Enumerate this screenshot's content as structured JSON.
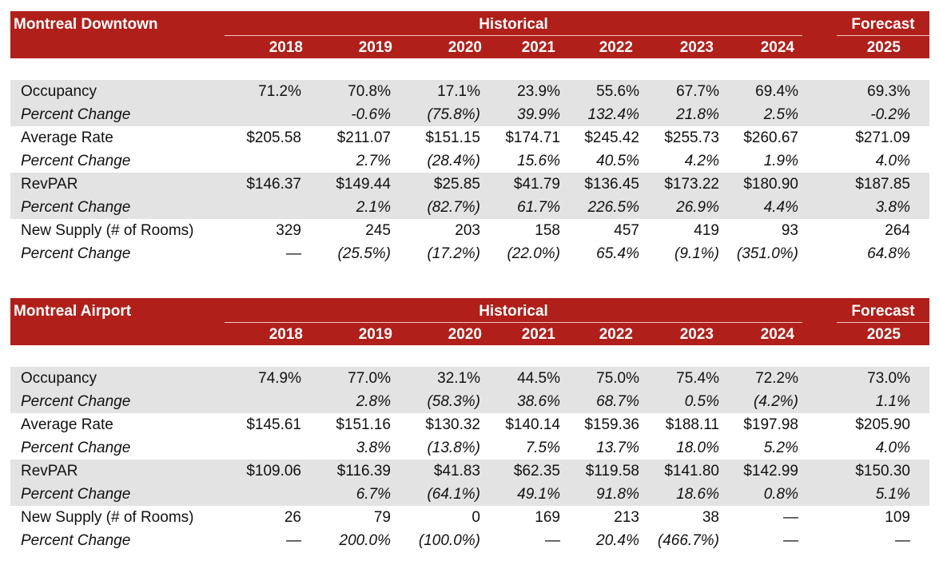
{
  "tables": [
    {
      "title": "Montreal Downtown",
      "historical_label": "Historical",
      "forecast_label": "Forecast",
      "years": [
        "2018",
        "2019",
        "2020",
        "2021",
        "2022",
        "2023",
        "2024",
        "2025"
      ],
      "rows": [
        {
          "label": "Occupancy",
          "values": [
            "71.2%",
            "70.8%",
            "17.1%",
            "23.9%",
            "55.6%",
            "67.7%",
            "69.4%",
            "69.3%"
          ]
        },
        {
          "label": "Percent Change",
          "values": [
            "",
            "-0.6%",
            "(75.8%)",
            "39.9%",
            "132.4%",
            "21.8%",
            "2.5%",
            "-0.2%"
          ]
        },
        {
          "label": "Average Rate",
          "values": [
            "$205.58",
            "$211.07",
            "$151.15",
            "$174.71",
            "$245.42",
            "$255.73",
            "$260.67",
            "$271.09"
          ]
        },
        {
          "label": "Percent Change",
          "values": [
            "",
            "2.7%",
            "(28.4%)",
            "15.6%",
            "40.5%",
            "4.2%",
            "1.9%",
            "4.0%"
          ]
        },
        {
          "label": "RevPAR",
          "values": [
            "$146.37",
            "$149.44",
            "$25.85",
            "$41.79",
            "$136.45",
            "$173.22",
            "$180.90",
            "$187.85"
          ]
        },
        {
          "label": "Percent Change",
          "values": [
            "",
            "2.1%",
            "(82.7%)",
            "61.7%",
            "226.5%",
            "26.9%",
            "4.4%",
            "3.8%"
          ]
        },
        {
          "label": "New Supply (# of Rooms)",
          "values": [
            "329",
            "245",
            "203",
            "158",
            "457",
            "419",
            "93",
            "264"
          ]
        },
        {
          "label": "Percent Change",
          "values": [
            "—",
            "(25.5%)",
            "(17.2%)",
            "(22.0%)",
            "65.4%",
            "(9.1%)",
            "(351.0%)",
            "64.8%"
          ]
        }
      ]
    },
    {
      "title": "Montreal Airport",
      "historical_label": "Historical",
      "forecast_label": "Forecast",
      "years": [
        "2018",
        "2019",
        "2020",
        "2021",
        "2022",
        "2023",
        "2024",
        "2025"
      ],
      "rows": [
        {
          "label": "Occupancy",
          "values": [
            "74.9%",
            "77.0%",
            "32.1%",
            "44.5%",
            "75.0%",
            "75.4%",
            "72.2%",
            "73.0%"
          ]
        },
        {
          "label": "Percent Change",
          "values": [
            "",
            "2.8%",
            "(58.3%)",
            "38.6%",
            "68.7%",
            "0.5%",
            "(4.2%)",
            "1.1%"
          ]
        },
        {
          "label": "Average Rate",
          "values": [
            "$145.61",
            "$151.16",
            "$130.32",
            "$140.14",
            "$159.36",
            "$188.11",
            "$197.98",
            "$205.90"
          ]
        },
        {
          "label": "Percent Change",
          "values": [
            "",
            "3.8%",
            "(13.8%)",
            "7.5%",
            "13.7%",
            "18.0%",
            "5.2%",
            "4.0%"
          ]
        },
        {
          "label": "RevPAR",
          "values": [
            "$109.06",
            "$116.39",
            "$41.83",
            "$62.35",
            "$119.58",
            "$141.80",
            "$142.99",
            "$150.30"
          ]
        },
        {
          "label": "Percent Change",
          "values": [
            "",
            "6.7%",
            "(64.1%)",
            "49.1%",
            "91.8%",
            "18.6%",
            "0.8%",
            "5.1%"
          ]
        },
        {
          "label": "New Supply (# of Rooms)",
          "values": [
            "26",
            "79",
            "0",
            "169",
            "213",
            "38",
            "—",
            "109"
          ]
        },
        {
          "label": "Percent Change",
          "values": [
            "—",
            "200.0%",
            "(100.0%)",
            "—",
            "20.4%",
            "(466.7%)",
            "—",
            "—"
          ]
        }
      ]
    }
  ],
  "colors": {
    "header_bg": "#b01f1a",
    "header_text": "#ffffff",
    "shade": "#e3e3e3"
  }
}
